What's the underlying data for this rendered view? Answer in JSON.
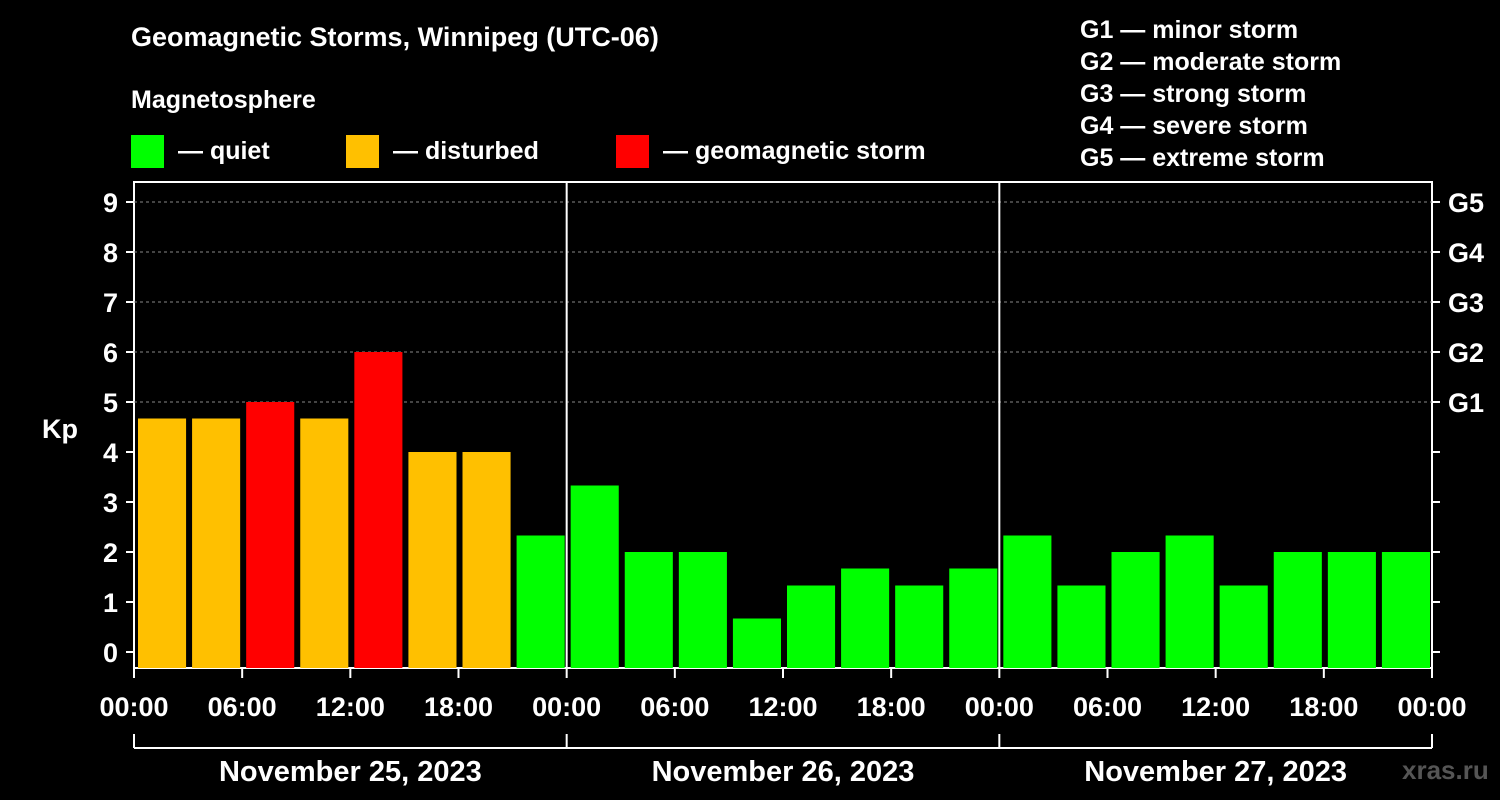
{
  "title": "Geomagnetic Storms, Winnipeg (UTC-06)",
  "magnetosphere_label": "Magnetosphere",
  "legend": [
    {
      "label": "— quiet",
      "color": "#00ff00"
    },
    {
      "label": "— disturbed",
      "color": "#ffc000"
    },
    {
      "label": "— geomagnetic storm",
      "color": "#ff0000"
    }
  ],
  "storm_scale": [
    "G1 — minor storm",
    "G2 — moderate storm",
    "G3 — strong storm",
    "G4 — severe storm",
    "G5 — extreme storm"
  ],
  "watermark": "xras.ru",
  "colors": {
    "quiet": "#00ff00",
    "disturbed": "#ffc000",
    "storm": "#ff0000",
    "background": "#000000",
    "axis": "#ffffff"
  },
  "chart_data": {
    "type": "bar",
    "ylabel": "Kp",
    "ylim": [
      0,
      9
    ],
    "y_ticks": [
      "0",
      "1",
      "2",
      "3",
      "4",
      "5",
      "6",
      "7",
      "8",
      "9"
    ],
    "right_ticks": [
      {
        "value": 5,
        "label": "G1"
      },
      {
        "value": 6,
        "label": "G2"
      },
      {
        "value": 7,
        "label": "G3"
      },
      {
        "value": 8,
        "label": "G4"
      },
      {
        "value": 9,
        "label": "G5"
      }
    ],
    "x_tick_labels": [
      "00:00",
      "06:00",
      "12:00",
      "18:00",
      "00:00",
      "06:00",
      "12:00",
      "18:00",
      "00:00",
      "06:00",
      "12:00",
      "18:00",
      "00:00"
    ],
    "days": [
      "November 25, 2023",
      "November 26, 2023",
      "November 27, 2023"
    ],
    "grid": "dashed horizontal at 5, 6, 7, 8, 9",
    "values": [
      4.67,
      4.67,
      5.0,
      4.67,
      6.0,
      4.0,
      4.0,
      2.33,
      3.33,
      2.0,
      2.0,
      0.67,
      1.33,
      1.67,
      1.33,
      1.67,
      2.33,
      1.33,
      2.0,
      2.33,
      1.33,
      2.0,
      2.0,
      2.0
    ],
    "status": [
      "disturbed",
      "disturbed",
      "storm",
      "disturbed",
      "storm",
      "disturbed",
      "disturbed",
      "quiet",
      "quiet",
      "quiet",
      "quiet",
      "quiet",
      "quiet",
      "quiet",
      "quiet",
      "quiet",
      "quiet",
      "quiet",
      "quiet",
      "quiet",
      "quiet",
      "quiet",
      "quiet",
      "quiet"
    ]
  }
}
